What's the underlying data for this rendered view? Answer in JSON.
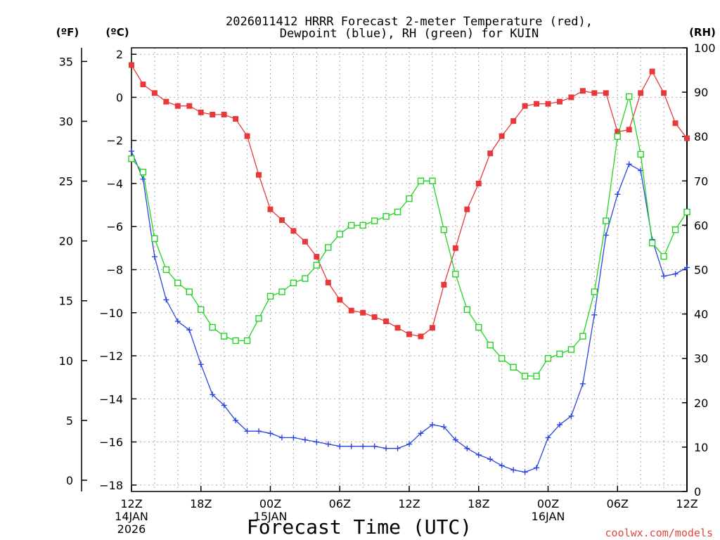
{
  "chart_data": {
    "type": "line",
    "title_line1": "2026011412 HRRR Forecast 2-meter Temperature (red),",
    "title_line2": "Dewpoint (blue), RH (green) for KUIN",
    "units": {
      "f": "(ºF)",
      "c": "(ºC)",
      "rh": "(RH)"
    },
    "xlabel": "Forecast Time (UTC)",
    "credit": "coolwx.com/models",
    "x_hours": [
      0,
      1,
      2,
      3,
      4,
      5,
      6,
      7,
      8,
      9,
      10,
      11,
      12,
      13,
      14,
      15,
      16,
      17,
      18,
      19,
      20,
      21,
      22,
      23,
      24,
      25,
      26,
      27,
      28,
      29,
      30,
      31,
      32,
      33,
      34,
      35,
      36,
      37,
      38,
      39,
      40,
      41,
      42,
      43,
      44,
      45,
      46,
      47,
      48
    ],
    "x_range": [
      0,
      48
    ],
    "x_ticks": [
      {
        "h": 0,
        "lines": [
          "12Z",
          "14JAN",
          "2026"
        ]
      },
      {
        "h": 6,
        "lines": [
          "18Z"
        ]
      },
      {
        "h": 12,
        "lines": [
          "00Z",
          "15JAN"
        ]
      },
      {
        "h": 18,
        "lines": [
          "06Z"
        ]
      },
      {
        "h": 24,
        "lines": [
          "12Z"
        ]
      },
      {
        "h": 30,
        "lines": [
          "18Z"
        ]
      },
      {
        "h": 36,
        "lines": [
          "00Z",
          "16JAN"
        ]
      },
      {
        "h": 42,
        "lines": [
          "06Z"
        ]
      },
      {
        "h": 48,
        "lines": [
          "12Z"
        ]
      }
    ],
    "y_celsius_range": [
      -18.3,
      2.3
    ],
    "y_celsius_ticks": [
      2,
      0,
      -2,
      -4,
      -6,
      -8,
      -10,
      -12,
      -14,
      -16,
      -18
    ],
    "y_celsius_labels": [
      "2",
      "0",
      "−2",
      "−4",
      "−6",
      "−8",
      "−10",
      "−12",
      "−14",
      "−16",
      "−18"
    ],
    "y_fahrenheit_ticks": [
      35,
      30,
      25,
      20,
      15,
      10,
      5,
      0
    ],
    "y_fahrenheit_labels": [
      "35",
      "30",
      "25",
      "20",
      "15",
      "10",
      "5",
      "0"
    ],
    "y_rh_range": [
      0,
      100
    ],
    "y_rh_ticks": [
      100,
      90,
      80,
      70,
      60,
      50,
      40,
      30,
      20,
      10,
      0
    ],
    "y_rh_labels": [
      "100",
      "90",
      "80",
      "70",
      "60",
      "50",
      "40",
      "30",
      "20",
      "10",
      "0"
    ],
    "grid": true,
    "series": [
      {
        "name": "Temperature (red)",
        "axis": "celsius",
        "color": "#e8393a",
        "marker": "filled-square",
        "values": [
          1.5,
          0.6,
          0.2,
          -0.2,
          -0.4,
          -0.4,
          -0.7,
          -0.8,
          -0.8,
          -1.0,
          -1.8,
          -3.6,
          -5.2,
          -5.7,
          -6.2,
          -6.7,
          -7.4,
          -8.6,
          -9.4,
          -9.9,
          -10.0,
          -10.2,
          -10.4,
          -10.7,
          -11.0,
          -11.1,
          -10.7,
          -8.7,
          -7.0,
          -5.2,
          -4.0,
          -2.6,
          -1.8,
          -1.1,
          -0.4,
          -0.3,
          -0.3,
          -0.2,
          0.0,
          0.3,
          0.2,
          0.2,
          -1.6,
          -1.5,
          0.2,
          1.2,
          0.2,
          -1.2,
          -1.9
        ]
      },
      {
        "name": "Dewpoint (blue)",
        "axis": "celsius",
        "color": "#2945e0",
        "marker": "plus",
        "values": [
          -2.5,
          -3.8,
          -7.4,
          -9.4,
          -10.4,
          -10.8,
          -12.4,
          -13.8,
          -14.3,
          -15.0,
          -15.5,
          -15.5,
          -15.6,
          -15.8,
          -15.8,
          -15.9,
          -16.0,
          -16.1,
          -16.2,
          -16.2,
          -16.2,
          -16.2,
          -16.3,
          -16.3,
          -16.1,
          -15.6,
          -15.2,
          -15.3,
          -15.9,
          -16.3,
          -16.6,
          -16.8,
          -17.1,
          -17.3,
          -17.4,
          -17.2,
          -15.8,
          -15.2,
          -14.8,
          -13.3,
          -10.1,
          -6.4,
          -4.5,
          -3.1,
          -3.4,
          -6.6,
          -8.3,
          -8.2,
          -7.9
        ]
      },
      {
        "name": "RH (green)",
        "axis": "rh",
        "color": "#22d322",
        "marker": "open-square",
        "values": [
          75,
          72,
          57,
          50,
          47,
          45,
          41,
          37,
          35,
          34,
          34,
          39,
          44,
          45,
          47,
          48,
          51,
          55,
          58,
          60,
          60,
          61,
          62,
          63,
          66,
          70,
          70,
          59,
          49,
          41,
          37,
          33,
          30,
          28,
          26,
          26,
          30,
          31,
          32,
          35,
          45,
          61,
          80,
          89,
          76,
          56,
          53,
          59,
          63
        ]
      }
    ]
  }
}
